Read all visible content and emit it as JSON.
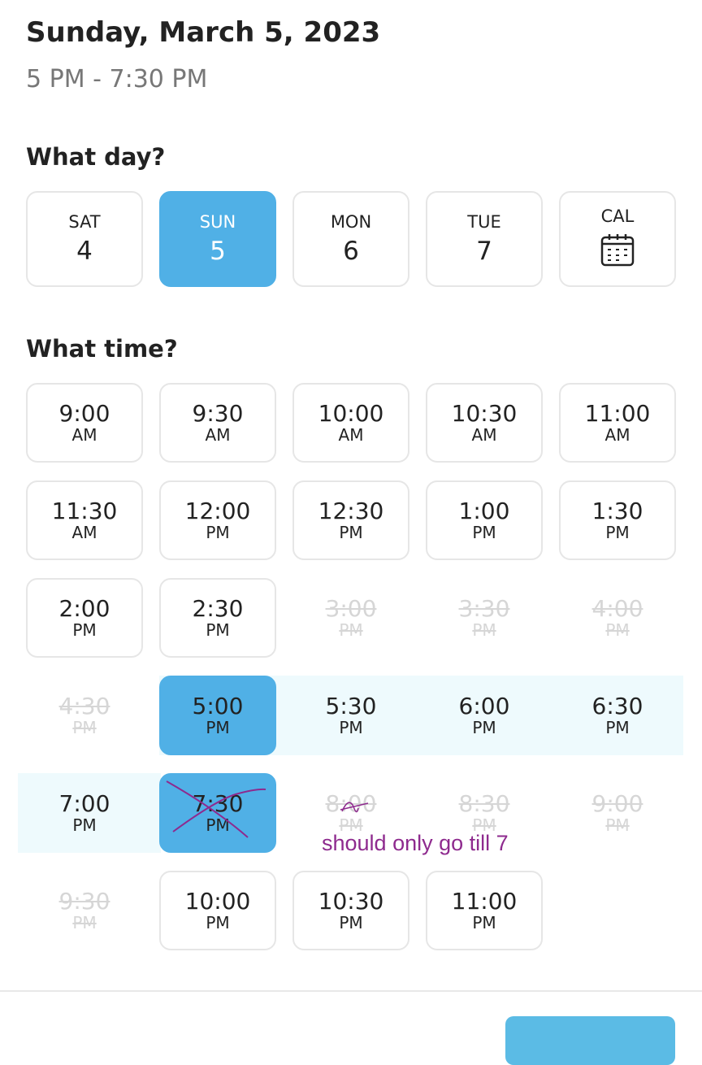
{
  "header": {
    "title": "Sunday, March 5, 2023",
    "time_range": "5 PM - 7:30 PM"
  },
  "day_section": {
    "heading": "What day?",
    "days": [
      {
        "name": "SAT",
        "date": "4",
        "selected": false
      },
      {
        "name": "SUN",
        "date": "5",
        "selected": true
      },
      {
        "name": "MON",
        "date": "6",
        "selected": false
      },
      {
        "name": "TUE",
        "date": "7",
        "selected": false
      },
      {
        "name": "CAL",
        "icon": "calendar-icon"
      }
    ]
  },
  "time_section": {
    "heading": "What time?",
    "slots": [
      {
        "time": "9:00",
        "period": "AM",
        "state": "available"
      },
      {
        "time": "9:30",
        "period": "AM",
        "state": "available"
      },
      {
        "time": "10:00",
        "period": "AM",
        "state": "available"
      },
      {
        "time": "10:30",
        "period": "AM",
        "state": "available"
      },
      {
        "time": "11:00",
        "period": "AM",
        "state": "available"
      },
      {
        "time": "11:30",
        "period": "AM",
        "state": "available"
      },
      {
        "time": "12:00",
        "period": "PM",
        "state": "available"
      },
      {
        "time": "12:30",
        "period": "PM",
        "state": "available"
      },
      {
        "time": "1:00",
        "period": "PM",
        "state": "available"
      },
      {
        "time": "1:30",
        "period": "PM",
        "state": "available"
      },
      {
        "time": "2:00",
        "period": "PM",
        "state": "available"
      },
      {
        "time": "2:30",
        "period": "PM",
        "state": "available"
      },
      {
        "time": "3:00",
        "period": "PM",
        "state": "disabled"
      },
      {
        "time": "3:30",
        "period": "PM",
        "state": "disabled"
      },
      {
        "time": "4:00",
        "period": "PM",
        "state": "disabled"
      },
      {
        "time": "4:30",
        "period": "PM",
        "state": "disabled"
      },
      {
        "time": "5:00",
        "period": "PM",
        "state": "selected"
      },
      {
        "time": "5:30",
        "period": "PM",
        "state": "in-range"
      },
      {
        "time": "6:00",
        "period": "PM",
        "state": "in-range"
      },
      {
        "time": "6:30",
        "period": "PM",
        "state": "in-range"
      },
      {
        "time": "7:00",
        "period": "PM",
        "state": "in-range"
      },
      {
        "time": "7:30",
        "period": "PM",
        "state": "selected"
      },
      {
        "time": "8:00",
        "period": "PM",
        "state": "disabled"
      },
      {
        "time": "8:30",
        "period": "PM",
        "state": "disabled"
      },
      {
        "time": "9:00",
        "period": "PM",
        "state": "disabled"
      },
      {
        "time": "9:30",
        "period": "PM",
        "state": "disabled"
      },
      {
        "time": "10:00",
        "period": "PM",
        "state": "available"
      },
      {
        "time": "10:30",
        "period": "PM",
        "state": "available"
      },
      {
        "time": "11:00",
        "period": "PM",
        "state": "available"
      }
    ]
  },
  "annotation": {
    "text": "should only go till 7",
    "color": "#8e2a8e"
  },
  "colors": {
    "accent": "#50b0e6",
    "range": "#eefafd"
  }
}
